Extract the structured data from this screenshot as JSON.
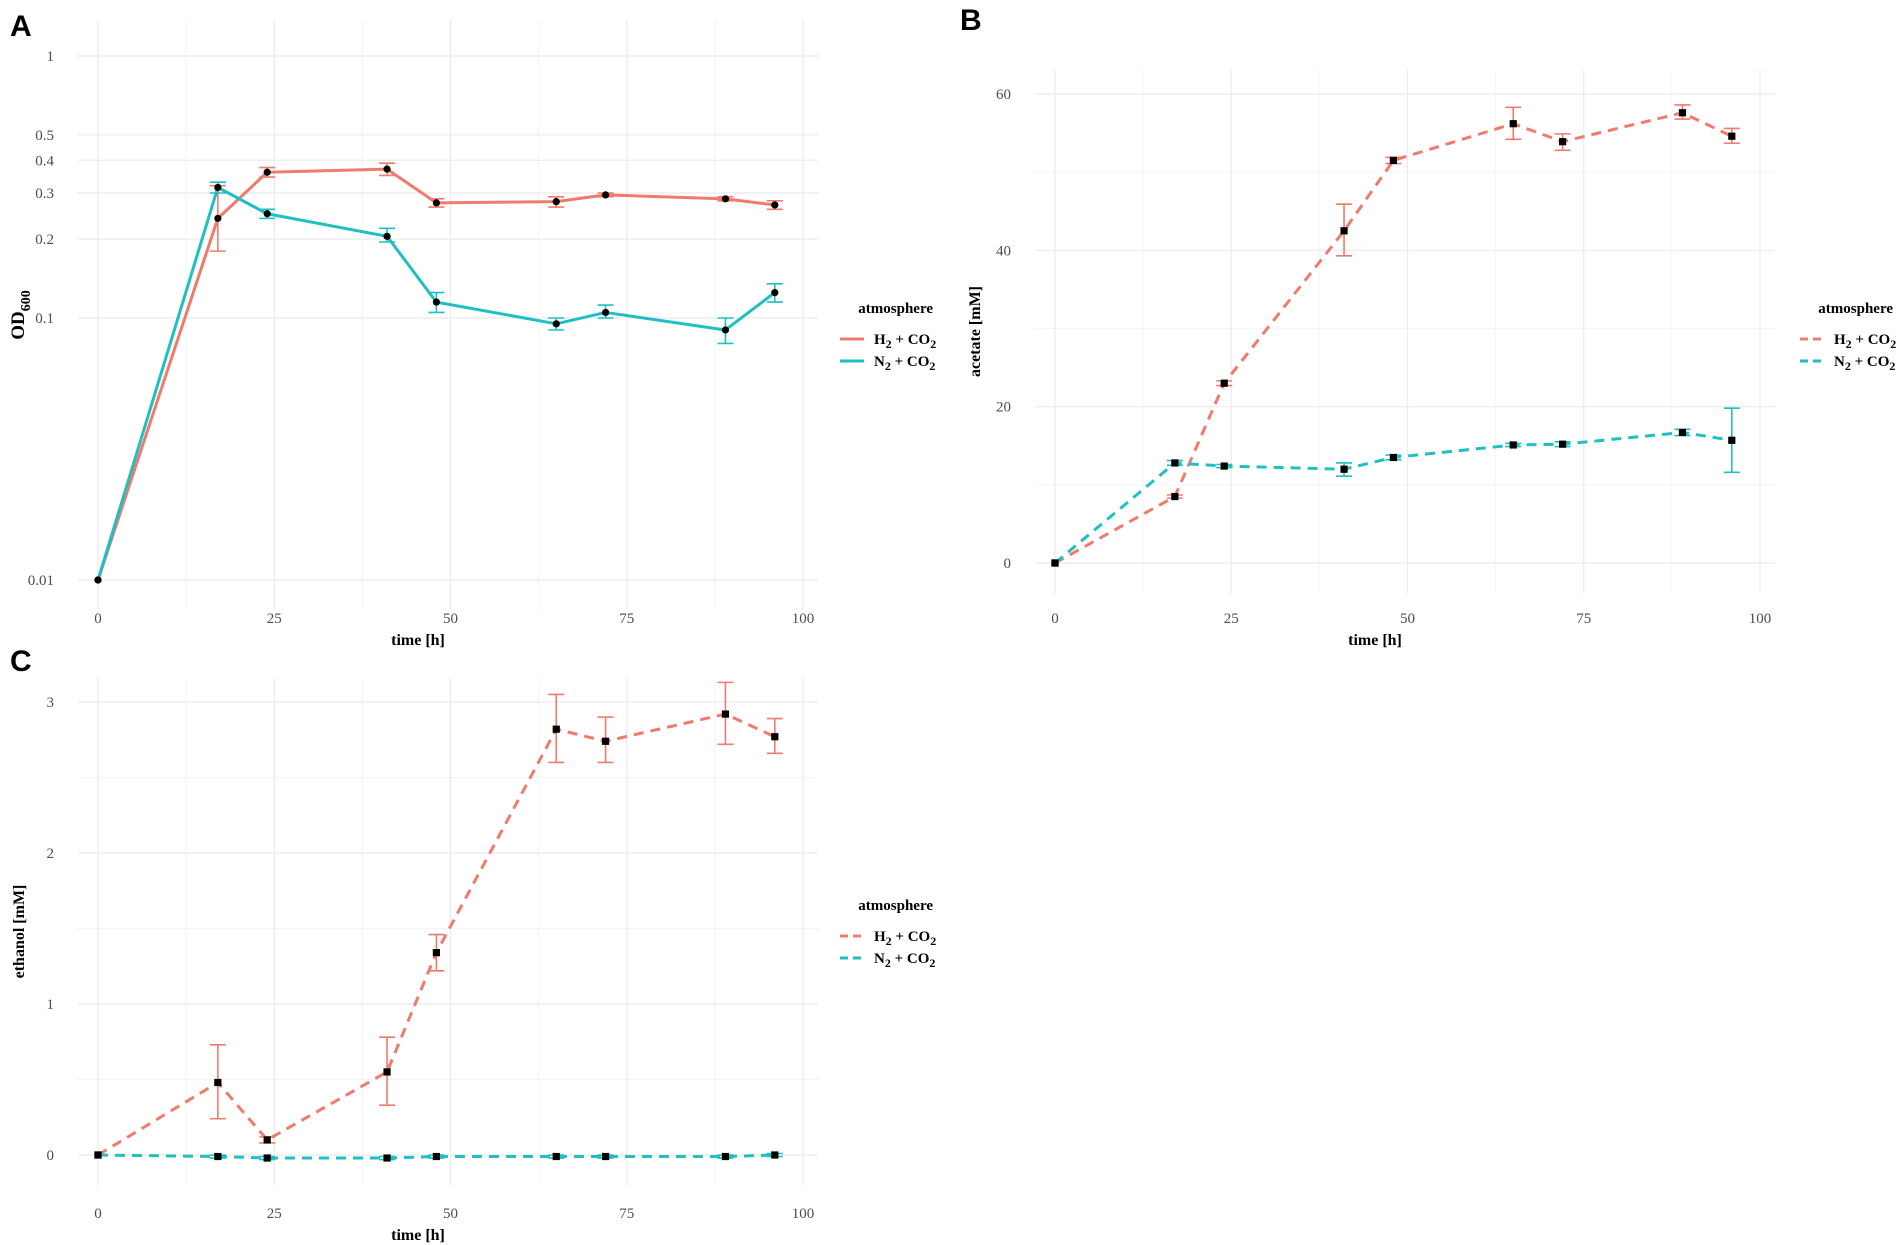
{
  "chart_data": [
    {
      "panel": "A",
      "type": "line",
      "y_scale": "log",
      "ylabel": "OD",
      "ylabel_sub": "600",
      "xlabel": "time [h]",
      "xlim": [
        0,
        100
      ],
      "ylim": [
        0.01,
        1
      ],
      "x_ticks": [
        0,
        25,
        50,
        75,
        100
      ],
      "x_tick_labels": [
        "0",
        "25",
        "50",
        "75",
        "100"
      ],
      "y_ticks": [
        0.01,
        0.1,
        0.2,
        0.3,
        0.4,
        0.5,
        1
      ],
      "y_tick_labels": [
        "0.01",
        "0.1",
        "0.2",
        "0.3",
        "0.4",
        "0.5",
        "1"
      ],
      "line_style": "solid",
      "marker": "circle",
      "legend": {
        "title": "atmosphere",
        "entries": [
          {
            "pre": "H",
            "sub1": "2",
            "mid": " + CO",
            "sub2": "2"
          },
          {
            "pre": "N",
            "sub1": "2",
            "mid": " + CO",
            "sub2": "2"
          }
        ]
      },
      "series": [
        {
          "name": "H2 + CO2",
          "color": "#f07b6c",
          "x": [
            0,
            17,
            24,
            41,
            48,
            65,
            72,
            89,
            96
          ],
          "y": [
            0.01,
            0.24,
            0.36,
            0.37,
            0.275,
            0.278,
            0.295,
            0.285,
            0.27
          ],
          "err_low": [
            0.01,
            0.18,
            0.345,
            0.35,
            0.265,
            0.265,
            0.29,
            0.28,
            0.26
          ],
          "err_high": [
            0.01,
            0.32,
            0.375,
            0.39,
            0.285,
            0.29,
            0.3,
            0.29,
            0.28
          ]
        },
        {
          "name": "N2 + CO2",
          "color": "#1fbfc4",
          "x": [
            0,
            17,
            24,
            41,
            48,
            65,
            72,
            89,
            96
          ],
          "y": [
            0.01,
            0.315,
            0.25,
            0.205,
            0.115,
            0.095,
            0.105,
            0.09,
            0.125
          ],
          "err_low": [
            0.01,
            0.3,
            0.24,
            0.195,
            0.105,
            0.09,
            0.1,
            0.08,
            0.115
          ],
          "err_high": [
            0.01,
            0.33,
            0.26,
            0.22,
            0.125,
            0.1,
            0.112,
            0.1,
            0.135
          ]
        }
      ]
    },
    {
      "panel": "B",
      "type": "line",
      "y_scale": "linear",
      "ylabel": "acetate [mM]",
      "xlabel": "time [h]",
      "xlim": [
        0,
        100
      ],
      "ylim": [
        0,
        60
      ],
      "x_ticks": [
        0,
        25,
        50,
        75,
        100
      ],
      "x_tick_labels": [
        "0",
        "25",
        "50",
        "75",
        "100"
      ],
      "y_ticks": [
        0,
        20,
        40,
        60
      ],
      "y_tick_labels": [
        "0",
        "20",
        "40",
        "60"
      ],
      "line_style": "dashed",
      "marker": "square",
      "legend": {
        "title": "atmosphere",
        "entries": [
          {
            "pre": "H",
            "sub1": "2",
            "mid": " + CO",
            "sub2": "2"
          },
          {
            "pre": "N",
            "sub1": "2",
            "mid": " + CO",
            "sub2": "2"
          }
        ]
      },
      "series": [
        {
          "name": "H2 + CO2",
          "color": "#f07b6c",
          "x": [
            0,
            17,
            24,
            41,
            48,
            65,
            72,
            89,
            96
          ],
          "y": [
            0,
            8.5,
            23,
            42.5,
            51.5,
            56.2,
            53.9,
            57.6,
            54.6
          ],
          "err_low": [
            0,
            8.3,
            22.7,
            39.3,
            51.1,
            54.2,
            52.8,
            56.8,
            53.7
          ],
          "err_high": [
            0,
            8.7,
            23.3,
            45.9,
            51.9,
            58.3,
            54.9,
            58.6,
            55.6
          ]
        },
        {
          "name": "N2 + CO2",
          "color": "#1fbfc4",
          "x": [
            0,
            17,
            24,
            41,
            48,
            65,
            72,
            89,
            96
          ],
          "y": [
            0,
            12.8,
            12.4,
            12,
            13.5,
            15.1,
            15.2,
            16.7,
            15.7
          ],
          "err_low": [
            0,
            12.5,
            12.2,
            11.1,
            13.2,
            14.9,
            14.9,
            16.3,
            11.6
          ],
          "err_high": [
            0,
            13.1,
            12.6,
            12.8,
            13.8,
            15.3,
            15.5,
            17.1,
            19.8
          ]
        }
      ]
    },
    {
      "panel": "C",
      "type": "line",
      "y_scale": "linear",
      "ylabel": "ethanol [mM]",
      "xlabel": "time [h]",
      "xlim": [
        0,
        100
      ],
      "ylim": [
        0,
        3
      ],
      "x_ticks": [
        0,
        25,
        50,
        75,
        100
      ],
      "x_tick_labels": [
        "0",
        "25",
        "50",
        "75",
        "100"
      ],
      "y_ticks": [
        0,
        1,
        2,
        3
      ],
      "y_tick_labels": [
        "0",
        "1",
        "2",
        "3"
      ],
      "line_style": "dashed",
      "marker": "square",
      "legend": {
        "title": "atmosphere",
        "entries": [
          {
            "pre": "H",
            "sub1": "2",
            "mid": " + CO",
            "sub2": "2"
          },
          {
            "pre": "N",
            "sub1": "2",
            "mid": " + CO",
            "sub2": "2"
          }
        ]
      },
      "series": [
        {
          "name": "H2 + CO2",
          "color": "#f07b6c",
          "x": [
            0,
            17,
            24,
            41,
            48,
            65,
            72,
            89,
            96
          ],
          "y": [
            0,
            0.48,
            0.1,
            0.55,
            1.34,
            2.82,
            2.74,
            2.92,
            2.77
          ],
          "err_low": [
            0,
            0.24,
            0.08,
            0.33,
            1.22,
            2.6,
            2.6,
            2.72,
            2.66
          ],
          "err_high": [
            0,
            0.73,
            0.12,
            0.78,
            1.46,
            3.05,
            2.9,
            3.13,
            2.89
          ]
        },
        {
          "name": "N2 + CO2",
          "color": "#1fbfc4",
          "x": [
            0,
            17,
            24,
            41,
            48,
            65,
            72,
            89,
            96
          ],
          "y": [
            0,
            -0.01,
            -0.02,
            -0.02,
            -0.01,
            -0.01,
            -0.01,
            -0.01,
            0
          ],
          "err_low": [
            0,
            -0.02,
            -0.03,
            -0.03,
            -0.02,
            -0.02,
            -0.02,
            -0.02,
            -0.01
          ],
          "err_high": [
            0,
            0,
            -0.01,
            -0.01,
            0,
            0,
            0,
            0,
            0.01
          ]
        }
      ]
    }
  ]
}
